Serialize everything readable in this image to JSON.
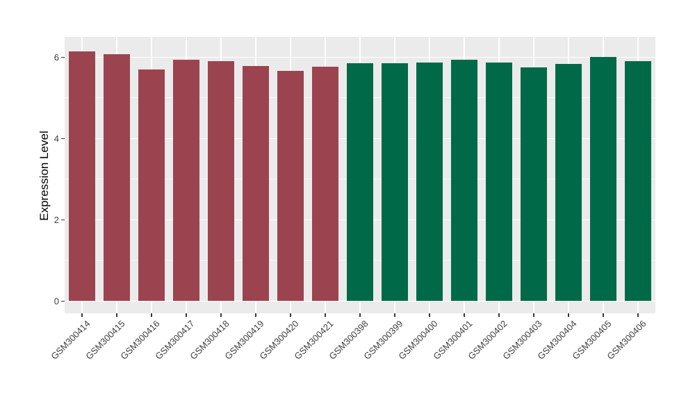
{
  "chart_data": {
    "type": "bar",
    "title": "",
    "xlabel": "",
    "ylabel": "Expression Level",
    "categories": [
      "GSM300414",
      "GSM300415",
      "GSM300416",
      "GSM300417",
      "GSM300418",
      "GSM300419",
      "GSM300420",
      "GSM300421",
      "GSM300398",
      "GSM300399",
      "GSM300400",
      "GSM300401",
      "GSM300402",
      "GSM300403",
      "GSM300404",
      "GSM300405",
      "GSM300406"
    ],
    "values": [
      6.14,
      6.07,
      5.7,
      5.93,
      5.9,
      5.78,
      5.66,
      5.76,
      5.85,
      5.85,
      5.87,
      5.94,
      5.87,
      5.74,
      5.83,
      6.0,
      5.91
    ],
    "bar_colors": [
      "#9B4450",
      "#9B4450",
      "#9B4450",
      "#9B4450",
      "#9B4450",
      "#9B4450",
      "#9B4450",
      "#9B4450",
      "#006A48",
      "#006A48",
      "#006A48",
      "#006A48",
      "#006A48",
      "#006A48",
      "#006A48",
      "#006A48",
      "#006A48"
    ],
    "y_ticks": [
      "0",
      "2",
      "4",
      "6"
    ],
    "y_tick_values": [
      0,
      2,
      4,
      6
    ],
    "y_minor_values": [
      1,
      3,
      5
    ],
    "ylim": [
      -0.3,
      6.5
    ],
    "grid": true,
    "legend_position": "none",
    "group_colors": {
      "left_group": "#9B4450",
      "right_group": "#006A48"
    }
  },
  "style": {
    "figure_bg": "#FFFFFF",
    "panel_bg": "#EBEBEB",
    "grid_color": "#FFFFFF",
    "axis_text_color": "#404040",
    "axis_title_color": "#000000",
    "tick_mark_color": "#333333"
  }
}
